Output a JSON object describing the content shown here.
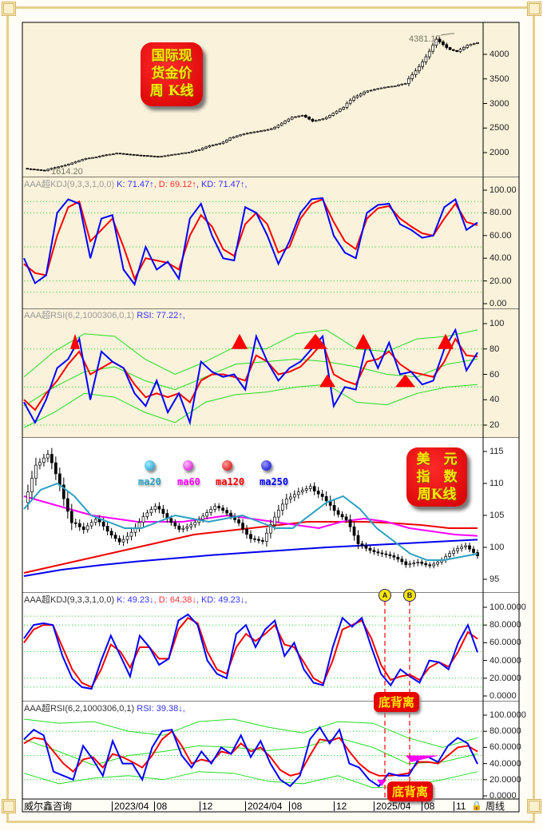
{
  "badges": {
    "gold": [
      "国际现",
      "货金价",
      "周 K线"
    ],
    "usd": [
      "美　元",
      "指　数",
      "周K线"
    ]
  },
  "gold_panel": {
    "max_label": "4381.17",
    "min_label": "1614.20"
  },
  "kdj1": {
    "title": "AAA超KDJ(9,3,3,1,0,0)",
    "k": "K: 71.47↑",
    "d": ", D: 69.12↑",
    "kd": ", KD: 71.47↑,"
  },
  "rsi1": {
    "title": "AAA超RSI(6,2,1000306,0,1)",
    "rsi": "RSI: 77.22↑,"
  },
  "usd_panel": {
    "legend": [
      "ma20",
      "ma60",
      "ma120",
      "ma250"
    ]
  },
  "kdj2": {
    "title": "AAA超KDJ(9,3,3,1,0,0)",
    "k": "K: 49.23↓",
    "d": ", D: 64.38↓",
    "kd": ", KD: 49.23↓,"
  },
  "rsi2": {
    "title": "AAA超RSI(6,2,1000306,0,1)",
    "rsi": "RSI: 39.38↓,"
  },
  "annotations": {
    "a": "A",
    "b": "B",
    "divergence": "底背离"
  },
  "footer": {
    "source": "威尔鑫咨询",
    "period": "周线",
    "ticks": [
      "2023/04",
      "08",
      "12",
      "2024/04",
      "08",
      "12",
      "2025/04",
      "08",
      "11"
    ]
  },
  "colors": {
    "k_line": "#0000ff",
    "d_line": "#ff0000",
    "bands": "#22dd22",
    "ma20": "#2aa0c0",
    "ma60": "#ff00ff",
    "ma120": "#ff0000",
    "ma250": "#0000ff"
  },
  "chart_data": [
    {
      "type": "candlestick",
      "title": "国际现货金价周K线",
      "ylim": [
        1500,
        4500
      ],
      "yticks": [
        2000,
        2500,
        3000,
        3500,
        4000
      ],
      "close": [
        1680,
        1650,
        1625,
        1700,
        1760,
        1820,
        1870,
        1900,
        1960,
        2000,
        1970,
        1940,
        1930,
        1920,
        1960,
        1980,
        2000,
        2050,
        2150,
        2200,
        2300,
        2350,
        2400,
        2450,
        2500,
        2600,
        2700,
        2750,
        2650,
        2700,
        2800,
        2900,
        3100,
        3250,
        3300,
        3330,
        3350,
        3400,
        3700,
        4000,
        4300,
        4100,
        4050,
        4200,
        4250
      ]
    },
    {
      "type": "line",
      "title": "AAA超KDJ(9,3,3,1,0,0)",
      "ylim": [
        0,
        100
      ],
      "yticks": [
        0,
        20,
        40,
        60,
        80,
        100
      ],
      "tick_format": "2",
      "ref_lines": [
        10,
        20,
        50,
        80,
        90
      ],
      "series": [
        {
          "name": "K",
          "values": [
            40,
            18,
            25,
            80,
            92,
            88,
            40,
            75,
            78,
            30,
            17,
            50,
            30,
            37,
            22,
            75,
            88,
            60,
            40,
            38,
            85,
            80,
            60,
            35,
            55,
            80,
            92,
            93,
            60,
            45,
            40,
            80,
            87,
            88,
            70,
            65,
            58,
            60,
            85,
            92,
            65,
            71.47
          ]
        },
        {
          "name": "D",
          "values": [
            35,
            27,
            25,
            60,
            85,
            90,
            55,
            65,
            75,
            50,
            22,
            40,
            38,
            36,
            30,
            60,
            78,
            68,
            48,
            42,
            70,
            80,
            70,
            45,
            50,
            75,
            88,
            92,
            72,
            55,
            48,
            75,
            84,
            86,
            75,
            68,
            62,
            60,
            75,
            88,
            72,
            69.12
          ]
        }
      ]
    },
    {
      "type": "line",
      "title": "AAA超RSI(6,2,1000306,0,1)",
      "ylim": [
        15,
        105
      ],
      "yticks": [
        20,
        40,
        60,
        80,
        100
      ],
      "tick_format": "0",
      "ref_lines": [
        20,
        50,
        80
      ],
      "series": [
        {
          "name": "RSI",
          "values": [
            38,
            22,
            40,
            65,
            72,
            88,
            40,
            78,
            70,
            65,
            45,
            35,
            55,
            30,
            45,
            22,
            70,
            62,
            58,
            60,
            48,
            90,
            70,
            55,
            65,
            70,
            80,
            90,
            35,
            50,
            48,
            85,
            65,
            85,
            60,
            62,
            52,
            55,
            80,
            95,
            63,
            77.22
          ]
        },
        {
          "values": [
            40,
            32,
            45,
            55,
            68,
            78,
            60,
            65,
            70,
            65,
            52,
            42,
            45,
            42,
            45,
            38,
            55,
            60,
            60,
            58,
            55,
            75,
            70,
            60,
            62,
            66,
            75,
            85,
            60,
            55,
            52,
            70,
            72,
            78,
            68,
            62,
            60,
            58,
            70,
            88,
            75,
            74
          ]
        },
        {
          "values": [
            58,
            78,
            92,
            90,
            72,
            60,
            70,
            82,
            80,
            92,
            95,
            80,
            78,
            88,
            90,
            95
          ]
        },
        {
          "values": [
            35,
            50,
            62,
            66,
            55,
            48,
            58,
            68,
            70,
            72,
            70,
            66,
            60,
            58,
            68,
            72
          ]
        },
        {
          "values": [
            18,
            30,
            45,
            42,
            30,
            22,
            38,
            44,
            46,
            50,
            52,
            38,
            36,
            45,
            50,
            52
          ]
        }
      ]
    },
    {
      "type": "candlestick",
      "title": "美元指数周K线",
      "ylim": [
        93,
        116
      ],
      "yticks": [
        95,
        100,
        105,
        110,
        115
      ],
      "close": [
        107,
        112,
        114,
        110,
        105,
        103,
        104,
        102,
        101,
        103,
        105,
        106,
        104,
        103,
        104,
        105,
        106,
        105,
        104,
        102,
        101,
        104,
        107,
        109,
        110,
        108,
        105,
        104,
        101,
        100,
        99,
        98,
        97,
        98,
        97.5,
        98,
        99,
        100,
        99
      ],
      "series": [
        {
          "name": "ma20",
          "values": [
            106,
            109,
            110,
            108,
            105,
            104,
            103,
            103,
            104,
            105,
            104.5,
            104,
            104.5,
            105,
            104,
            103,
            103,
            105,
            107,
            108,
            106,
            103,
            101,
            99,
            98,
            98,
            98.5,
            99
          ]
        },
        {
          "name": "ma60",
          "values": [
            108,
            107,
            106,
            105,
            104.5,
            104,
            104,
            104,
            104.5,
            105,
            104.5,
            104,
            103.5,
            103,
            104,
            104.5,
            104,
            103,
            102.5,
            102,
            101.8
          ]
        },
        {
          "name": "ma120",
          "values": [
            96,
            97,
            98,
            99,
            100,
            101,
            102,
            102.5,
            103,
            103.5,
            104,
            104,
            104,
            103.8,
            103.5,
            103,
            103
          ]
        },
        {
          "name": "ma250",
          "values": [
            95.5,
            96.5,
            97.2,
            97.8,
            98.3,
            98.8,
            99.2,
            99.6,
            100,
            100.3,
            100.6,
            100.9,
            101.2
          ]
        }
      ]
    },
    {
      "type": "line",
      "title": "AAA超KDJ(9,3,3,1,0,0)",
      "ylim": [
        0,
        100
      ],
      "yticks": [
        0,
        20,
        40,
        60,
        80,
        100
      ],
      "tick_format": "4",
      "ref_lines": [
        10,
        20,
        50,
        80,
        90
      ],
      "series": [
        {
          "name": "K",
          "values": [
            65,
            80,
            82,
            80,
            45,
            20,
            10,
            8,
            40,
            68,
            45,
            22,
            68,
            55,
            35,
            42,
            85,
            92,
            80,
            40,
            25,
            20,
            70,
            80,
            55,
            75,
            85,
            45,
            60,
            30,
            15,
            12,
            55,
            88,
            78,
            88,
            55,
            25,
            12,
            30,
            22,
            15,
            40,
            38,
            30,
            60,
            80,
            49.23
          ]
        },
        {
          "name": "D",
          "values": [
            60,
            75,
            80,
            80,
            55,
            30,
            15,
            10,
            30,
            58,
            50,
            32,
            55,
            55,
            42,
            42,
            75,
            88,
            82,
            50,
            30,
            25,
            55,
            70,
            62,
            70,
            80,
            58,
            55,
            38,
            20,
            14,
            40,
            75,
            80,
            85,
            65,
            35,
            18,
            22,
            24,
            18,
            32,
            38,
            33,
            50,
            72,
            64.38
          ]
        }
      ]
    },
    {
      "type": "line",
      "title": "AAA超RSI(6,2,1000306,0,1)",
      "ylim": [
        0,
        100
      ],
      "yticks": [
        0,
        20,
        40,
        60,
        80,
        100
      ],
      "tick_format": "4",
      "ref_lines": [
        20,
        50,
        80
      ],
      "series": [
        {
          "name": "RSI",
          "values": [
            70,
            82,
            75,
            30,
            25,
            20,
            62,
            45,
            25,
            68,
            40,
            40,
            20,
            60,
            80,
            82,
            50,
            35,
            55,
            40,
            60,
            52,
            75,
            48,
            68,
            40,
            20,
            12,
            25,
            70,
            85,
            65,
            82,
            40,
            35,
            20,
            12,
            28,
            25,
            25,
            45,
            48,
            42,
            62,
            72,
            65,
            39.38
          ]
        },
        {
          "values": [
            65,
            72,
            70,
            55,
            40,
            30,
            45,
            48,
            35,
            52,
            48,
            42,
            35,
            50,
            70,
            80,
            62,
            40,
            45,
            42,
            55,
            52,
            65,
            55,
            60,
            48,
            32,
            25,
            28,
            50,
            70,
            68,
            72,
            55,
            40,
            30,
            25,
            25,
            26,
            28,
            42,
            42,
            40,
            50,
            60,
            62,
            55
          ]
        },
        {
          "values": [
            95,
            90,
            92,
            80,
            75,
            92,
            95,
            85,
            78,
            92,
            90,
            72,
            60,
            72
          ]
        },
        {
          "values": [
            70,
            55,
            38,
            50,
            55,
            62,
            60,
            56,
            60,
            72,
            60,
            40,
            42,
            52
          ]
        },
        {
          "values": [
            28,
            15,
            22,
            25,
            20,
            30,
            28,
            18,
            15,
            25,
            10,
            12,
            20,
            30
          ]
        }
      ]
    }
  ]
}
